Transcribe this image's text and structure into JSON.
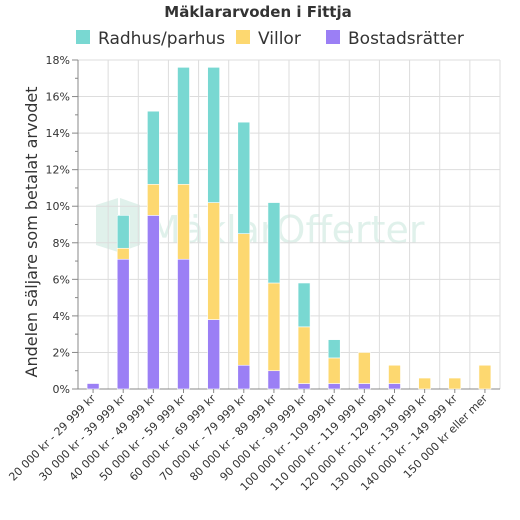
{
  "chart_data": {
    "type": "bar",
    "stacked": true,
    "title": "Mäklararvoden i Fittja",
    "ylabel": "Andelen säljare som betalat arvodet",
    "xlabel": "",
    "y_unit": "%",
    "ylim": [
      0,
      18
    ],
    "yticks": [
      0,
      2,
      4,
      6,
      8,
      10,
      12,
      14,
      16,
      18
    ],
    "ytick_labels": [
      "0%",
      "2%",
      "4%",
      "6%",
      "8%",
      "10%",
      "12%",
      "14%",
      "16%",
      "18%"
    ],
    "grid": true,
    "legend_position": "top",
    "watermark": "MäklarOfferter",
    "categories": [
      "20 000 kr - 29 999 kr",
      "30 000 kr - 39 999 kr",
      "40 000 kr - 49 999 kr",
      "50 000 kr - 59 999 kr",
      "60 000 kr - 69 999 kr",
      "70 000 kr - 79 999 kr",
      "80 000 kr - 89 999 kr",
      "90 000 kr - 99 999 kr",
      "100 000 kr - 109 999 kr",
      "110 000 kr - 119 999 kr",
      "120 000 kr - 129 999 kr",
      "130 000 kr - 139 999 kr",
      "140 000 kr - 149 999 kr",
      "150 000 kr eller mer"
    ],
    "series": [
      {
        "name": "Bostadsrätter",
        "color": "#9b7ff5",
        "values": [
          0.3,
          7.1,
          9.5,
          7.1,
          3.8,
          1.3,
          1.0,
          0.3,
          0.3,
          0.3,
          0.3,
          0,
          0,
          0
        ]
      },
      {
        "name": "Villor",
        "color": "#fdd870",
        "values": [
          0,
          0.6,
          1.7,
          4.1,
          6.4,
          7.2,
          4.8,
          3.1,
          1.4,
          1.7,
          1.0,
          0.6,
          0.6,
          1.3
        ]
      },
      {
        "name": "Radhus/parhus",
        "color": "#79d8d2",
        "values": [
          0,
          1.8,
          4.0,
          6.4,
          7.4,
          6.1,
          4.4,
          2.4,
          1.0,
          0,
          0,
          0,
          0,
          0
        ]
      }
    ],
    "legend_order": [
      "Radhus/parhus",
      "Villor",
      "Bostadsrätter"
    ]
  }
}
